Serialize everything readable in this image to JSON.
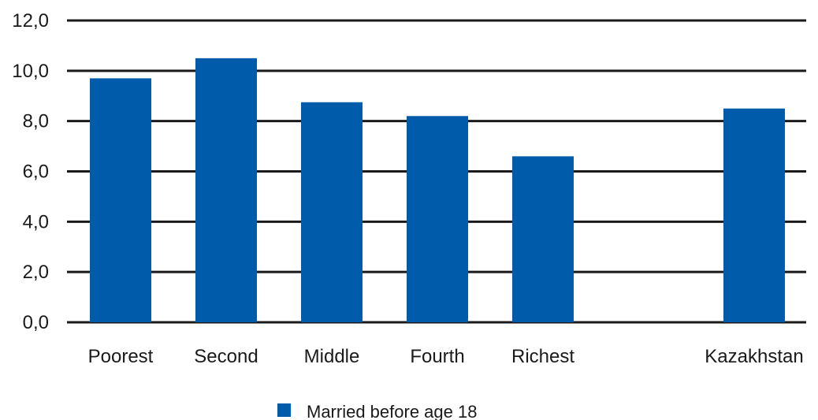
{
  "chart_data": {
    "type": "bar",
    "categories": [
      "Poorest",
      "Second",
      "Middle",
      "Fourth",
      "Richest",
      "",
      "Kazakhstan"
    ],
    "series": [
      {
        "name": "Married before age 18",
        "values": [
          9.7,
          10.5,
          8.75,
          8.2,
          6.6,
          null,
          8.5
        ],
        "color": "#005bab"
      }
    ],
    "yticks": [
      "0,0",
      "2,0",
      "4,0",
      "6,0",
      "8,0",
      "10,0",
      "12,0"
    ],
    "ylim": [
      0,
      12
    ],
    "grid": true,
    "gridline_color": "#1a1a1a",
    "legend_position": "bottom",
    "title": "",
    "xlabel": "",
    "ylabel": ""
  }
}
